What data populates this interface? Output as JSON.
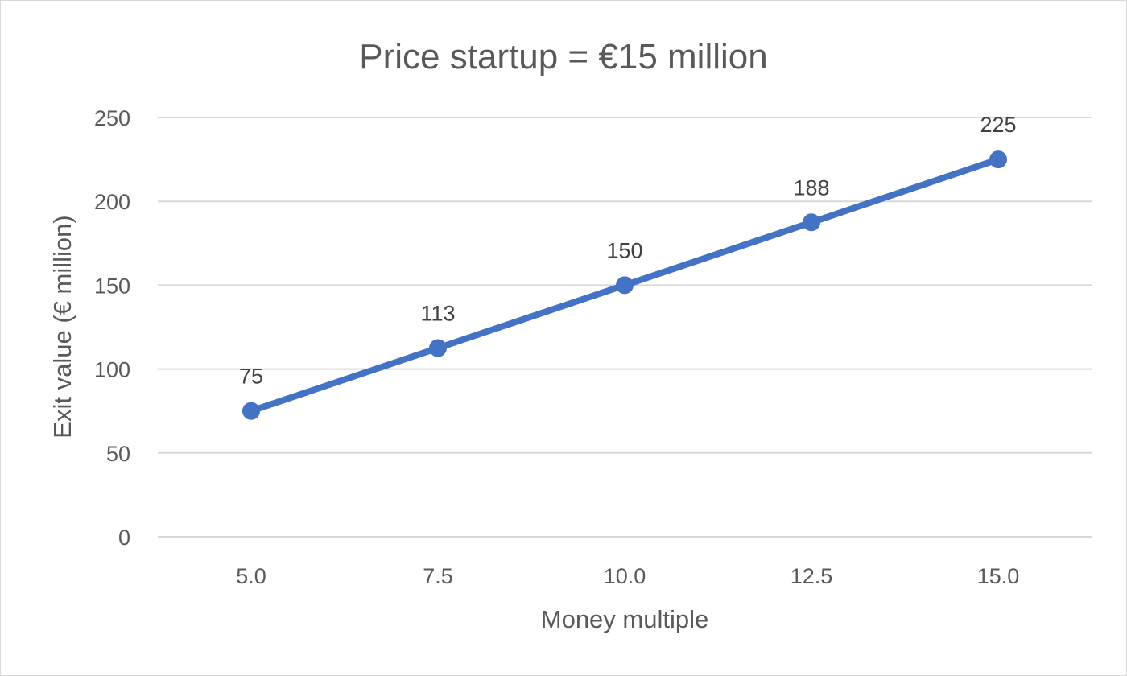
{
  "chart_data": {
    "type": "line",
    "title": "Price startup = €15 million",
    "xlabel": "Money multiple",
    "ylabel": "Exit value (€ million)",
    "categories": [
      "5.0",
      "7.5",
      "10.0",
      "12.5",
      "15.0"
    ],
    "x": [
      5.0,
      7.5,
      10.0,
      12.5,
      15.0
    ],
    "series": [
      {
        "values": [
          75,
          112.5,
          150,
          187.5,
          225
        ],
        "data_labels": [
          "75",
          "113",
          "150",
          "188",
          "225"
        ],
        "color": "#4472c4"
      }
    ],
    "ylim": [
      0,
      250
    ],
    "yticks": [
      "0",
      "50",
      "100",
      "150",
      "200",
      "250"
    ],
    "grid": true,
    "legend": "none"
  }
}
